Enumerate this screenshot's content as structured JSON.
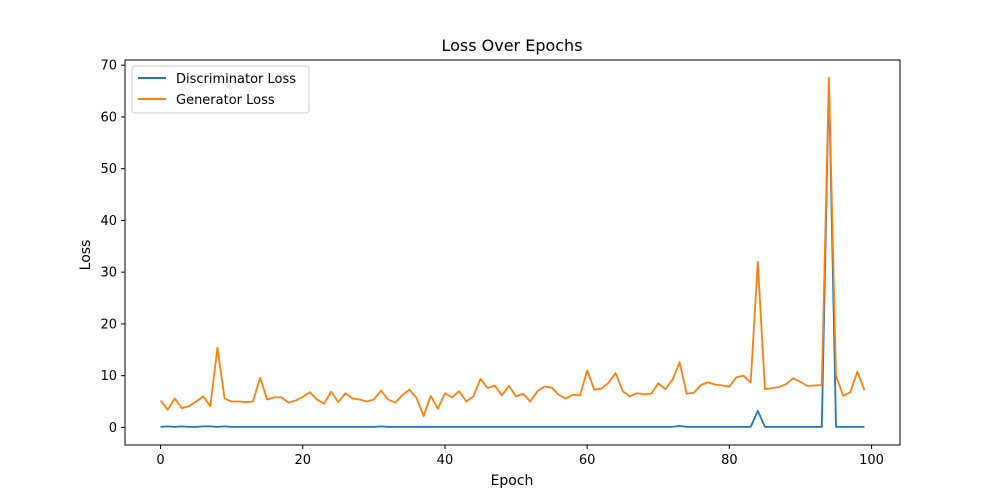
{
  "chart_data": {
    "type": "line",
    "title": "Loss Over Epochs",
    "xlabel": "Epoch",
    "ylabel": "Loss",
    "xlim": [
      -5,
      104
    ],
    "ylim": [
      -3.4,
      71
    ],
    "xticks": [
      0,
      20,
      40,
      60,
      80,
      100
    ],
    "yticks": [
      0,
      10,
      20,
      30,
      40,
      50,
      60,
      70
    ],
    "grid": false,
    "legend_position": "upper-left",
    "series": [
      {
        "name": "Discriminator Loss",
        "color": "#1f77b4",
        "x": [
          0,
          1,
          2,
          3,
          4,
          5,
          6,
          7,
          8,
          9,
          10,
          11,
          12,
          13,
          14,
          15,
          16,
          17,
          18,
          19,
          20,
          21,
          22,
          23,
          24,
          25,
          26,
          27,
          28,
          29,
          30,
          31,
          32,
          33,
          34,
          35,
          36,
          37,
          38,
          39,
          40,
          41,
          42,
          43,
          44,
          45,
          46,
          47,
          48,
          49,
          50,
          51,
          52,
          53,
          54,
          55,
          56,
          57,
          58,
          59,
          60,
          61,
          62,
          63,
          64,
          65,
          66,
          67,
          68,
          69,
          70,
          71,
          72,
          73,
          74,
          75,
          76,
          77,
          78,
          79,
          80,
          81,
          82,
          83,
          84,
          85,
          86,
          87,
          88,
          89,
          90,
          91,
          92,
          93,
          94,
          95,
          96,
          97,
          98,
          99
        ],
        "values": [
          0.1,
          0.2,
          0.1,
          0.2,
          0.1,
          0.1,
          0.2,
          0.2,
          0.1,
          0.2,
          0.1,
          0.1,
          0.1,
          0.1,
          0.1,
          0.1,
          0.1,
          0.1,
          0.1,
          0.1,
          0.1,
          0.1,
          0.1,
          0.1,
          0.1,
          0.1,
          0.1,
          0.1,
          0.1,
          0.1,
          0.1,
          0.2,
          0.1,
          0.1,
          0.1,
          0.1,
          0.1,
          0.1,
          0.1,
          0.1,
          0.1,
          0.1,
          0.1,
          0.1,
          0.1,
          0.1,
          0.1,
          0.1,
          0.1,
          0.1,
          0.1,
          0.1,
          0.1,
          0.1,
          0.1,
          0.1,
          0.1,
          0.1,
          0.1,
          0.1,
          0.1,
          0.1,
          0.1,
          0.1,
          0.1,
          0.1,
          0.1,
          0.1,
          0.1,
          0.1,
          0.1,
          0.1,
          0.1,
          0.3,
          0.1,
          0.1,
          0.1,
          0.1,
          0.1,
          0.1,
          0.1,
          0.1,
          0.1,
          0.1,
          3.2,
          0.1,
          0.1,
          0.1,
          0.1,
          0.1,
          0.1,
          0.1,
          0.1,
          0.1,
          67.0,
          0.1,
          0.1,
          0.1,
          0.1,
          0.1
        ]
      },
      {
        "name": "Generator Loss",
        "color": "#ff7f0e",
        "x": [
          0,
          1,
          2,
          3,
          4,
          5,
          6,
          7,
          8,
          9,
          10,
          11,
          12,
          13,
          14,
          15,
          16,
          17,
          18,
          19,
          20,
          21,
          22,
          23,
          24,
          25,
          26,
          27,
          28,
          29,
          30,
          31,
          32,
          33,
          34,
          35,
          36,
          37,
          38,
          39,
          40,
          41,
          42,
          43,
          44,
          45,
          46,
          47,
          48,
          49,
          50,
          51,
          52,
          53,
          54,
          55,
          56,
          57,
          58,
          59,
          60,
          61,
          62,
          63,
          64,
          65,
          66,
          67,
          68,
          69,
          70,
          71,
          72,
          73,
          74,
          75,
          76,
          77,
          78,
          79,
          80,
          81,
          82,
          83,
          84,
          85,
          86,
          87,
          88,
          89,
          90,
          91,
          92,
          93,
          94,
          95,
          96,
          97,
          98,
          99
        ],
        "values": [
          5.2,
          3.4,
          5.6,
          3.7,
          4.1,
          5.0,
          6.0,
          4.1,
          15.4,
          5.6,
          5.0,
          5.0,
          4.9,
          5.0,
          9.6,
          5.4,
          5.8,
          5.8,
          4.8,
          5.2,
          5.9,
          6.8,
          5.4,
          4.6,
          6.9,
          4.9,
          6.6,
          5.6,
          5.4,
          5.0,
          5.4,
          7.1,
          5.4,
          4.8,
          6.2,
          7.3,
          5.7,
          2.2,
          6.1,
          3.6,
          6.6,
          5.8,
          7.0,
          5.0,
          6.0,
          9.4,
          7.6,
          8.1,
          6.2,
          8.0,
          6.0,
          6.5,
          5.0,
          7.0,
          7.9,
          7.7,
          6.3,
          5.6,
          6.3,
          6.2,
          11.0,
          7.3,
          7.5,
          8.6,
          10.5,
          7.0,
          6.0,
          6.6,
          6.4,
          6.5,
          8.5,
          7.4,
          9.2,
          12.6,
          6.5,
          6.7,
          8.2,
          8.7,
          8.3,
          8.1,
          7.9,
          9.7,
          10.0,
          8.7,
          32.0,
          7.4,
          7.6,
          7.8,
          8.4,
          9.5,
          8.8,
          8.0,
          8.1,
          8.2,
          67.6,
          10.0,
          6.1,
          6.8,
          10.8,
          7.2
        ]
      }
    ]
  }
}
